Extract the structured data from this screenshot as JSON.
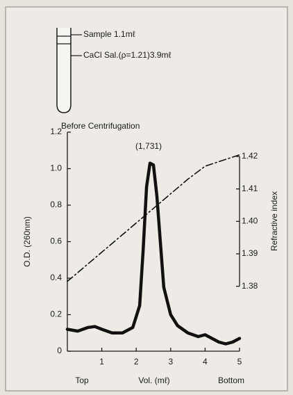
{
  "diagram": {
    "sample_label": "Sample 1.1mℓ",
    "salt_label": "CaCl Sal.(ρ=1.21)3.9mℓ",
    "caption": "Before Centrifugation"
  },
  "chart_data": {
    "type": "line",
    "annotation": "(1,731)",
    "xlabel_left": "Top",
    "xlabel": "Vol. (mℓ)",
    "xlabel_right": "Bottom",
    "ylabel": "O.D. (260nm)",
    "y2label": "Refractive index",
    "xlim": [
      0,
      5
    ],
    "xticks": [
      1,
      2,
      3,
      4,
      5
    ],
    "ylim": [
      0,
      1.2
    ],
    "yticks": [
      0,
      0.2,
      0.4,
      0.6,
      0.8,
      {
        "value": 1,
        "label": "1.0"
      },
      1.2
    ],
    "y2lim": [
      1.36,
      1.4275
    ],
    "y2ticks": [
      1.38,
      1.39,
      {
        "value": 1.4,
        "label": "1.40"
      },
      1.41,
      1.42
    ],
    "series": [
      {
        "color": "#111111",
        "line_style": "solid",
        "x": [
          0,
          0.3,
          0.6,
          0.8,
          1.0,
          1.3,
          1.6,
          1.9,
          2.1,
          2.2,
          2.3,
          2.4,
          2.5,
          2.6,
          2.7,
          2.8,
          3.0,
          3.2,
          3.5,
          3.8,
          4.0,
          4.2,
          4.4,
          4.6,
          4.8,
          5.0
        ],
        "values": [
          0.12,
          0.11,
          0.13,
          0.135,
          0.12,
          0.1,
          0.1,
          0.13,
          0.25,
          0.55,
          0.9,
          1.03,
          1.02,
          0.85,
          0.6,
          0.35,
          0.2,
          0.14,
          0.1,
          0.08,
          0.09,
          0.07,
          0.05,
          0.04,
          0.05,
          0.07
        ]
      },
      {
        "color": "#111111",
        "line_style": "dash-dot",
        "axis": "y2",
        "x": [
          0,
          1,
          2,
          3,
          3.5,
          4,
          5
        ],
        "values": [
          1.3815,
          1.3905,
          1.3995,
          1.4085,
          1.413,
          1.417,
          1.4205
        ]
      }
    ]
  }
}
